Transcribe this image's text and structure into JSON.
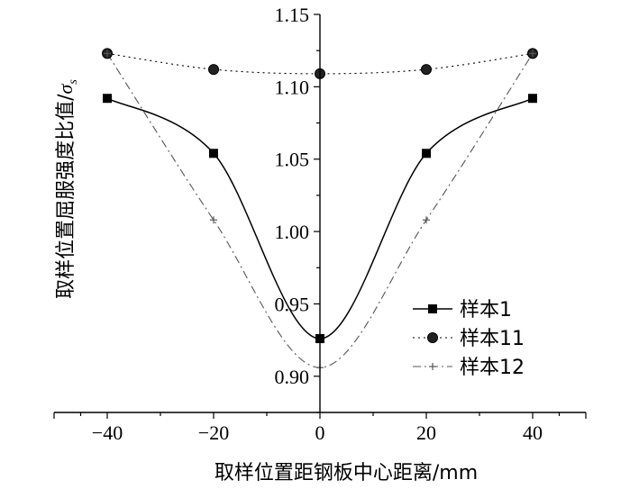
{
  "chart_data": {
    "type": "line",
    "x": [
      -40,
      -20,
      0,
      20,
      40
    ],
    "xlim": [
      -50,
      50
    ],
    "ylim": [
      0.875,
      1.15
    ],
    "xticks": [
      -40,
      -20,
      0,
      20,
      40
    ],
    "xtick_labels": [
      "−40",
      "−20",
      "0",
      "20",
      "40"
    ],
    "yticks": [
      0.9,
      0.95,
      1.0,
      1.05,
      1.1,
      1.15
    ],
    "ytick_labels": [
      "0.90",
      "0.95",
      "1.00",
      "1.05",
      "1.10",
      "1.15"
    ],
    "xlabel": "取样位置距钢板中心距离/mm",
    "ylabel": "取样位置屈服强度比值/",
    "ylabel_symbol": "σ",
    "ylabel_subscript": "s",
    "grid": false,
    "legend_position": "bottom-right",
    "series": [
      {
        "name": "样本1",
        "values": [
          1.092,
          1.054,
          0.926,
          1.054,
          1.092
        ],
        "marker": "square",
        "line": "solid",
        "color": "#000000"
      },
      {
        "name": "样本11",
        "values": [
          1.123,
          1.112,
          1.109,
          1.112,
          1.123
        ],
        "marker": "circle",
        "line": "dotted",
        "color": "#000000"
      },
      {
        "name": "样本12",
        "values": [
          1.123,
          1.008,
          0.906,
          1.008,
          1.123
        ],
        "marker": "plus",
        "line": "dashdot",
        "color": "#555555"
      }
    ]
  }
}
